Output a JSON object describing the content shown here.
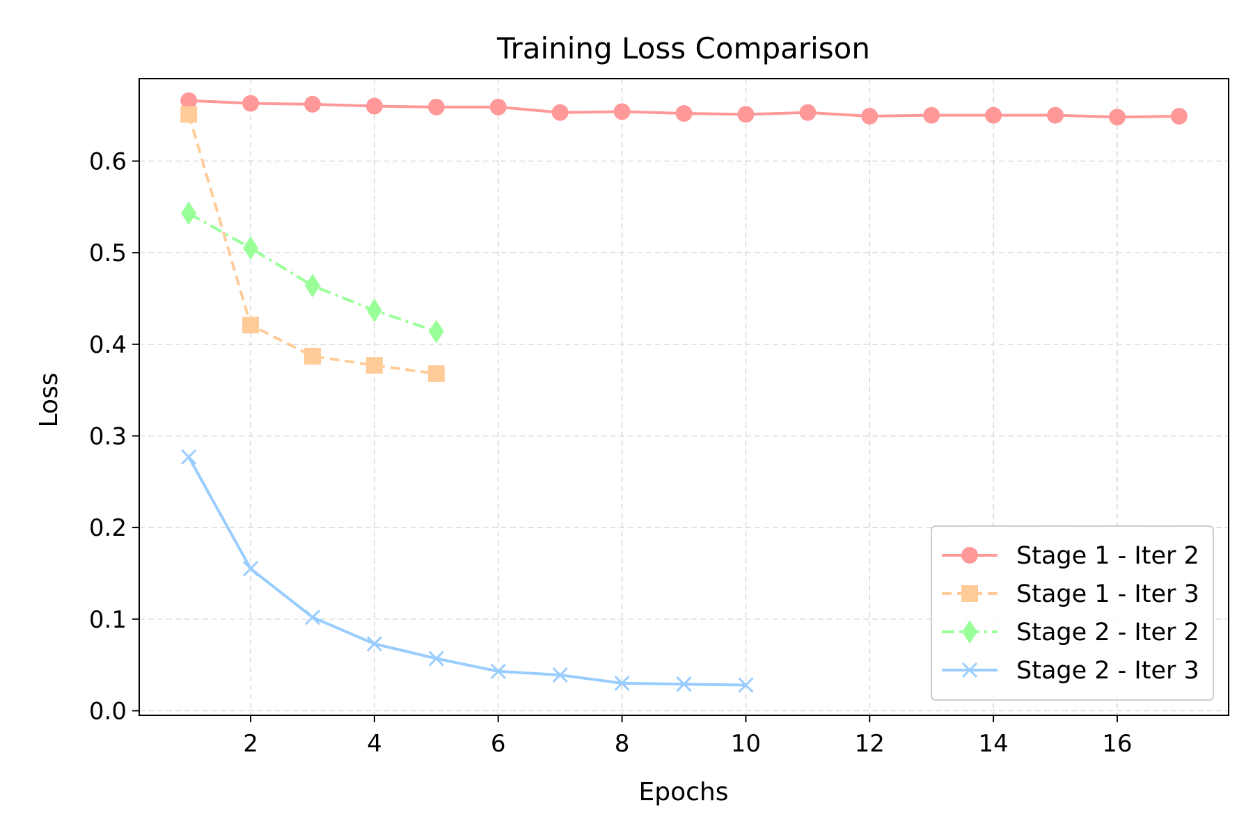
{
  "chart_data": {
    "type": "line",
    "title": "Training Loss Comparison",
    "xlabel": "Epochs",
    "ylabel": "Loss",
    "xlim": [
      0.2,
      17.8
    ],
    "ylim": [
      -0.005,
      0.69
    ],
    "xticks": [
      2,
      4,
      6,
      8,
      10,
      12,
      14,
      16
    ],
    "yticks": [
      0.0,
      0.1,
      0.2,
      0.3,
      0.4,
      0.5,
      0.6
    ],
    "grid": true,
    "legend_position": "lower-right",
    "series": [
      {
        "name": "Stage 1 - Iter 2",
        "color": "#ff9999",
        "marker": "circle",
        "line_style": "solid",
        "x": [
          1,
          2,
          3,
          4,
          5,
          6,
          7,
          8,
          9,
          10,
          11,
          12,
          13,
          14,
          15,
          16,
          17
        ],
        "y": [
          0.666,
          0.663,
          0.662,
          0.66,
          0.659,
          0.659,
          0.653,
          0.654,
          0.652,
          0.651,
          0.653,
          0.649,
          0.65,
          0.65,
          0.65,
          0.648,
          0.649
        ]
      },
      {
        "name": "Stage 1 - Iter 3",
        "color": "#ffcc99",
        "marker": "square",
        "line_style": "dashed",
        "x": [
          1,
          2,
          3,
          4,
          5
        ],
        "y": [
          0.651,
          0.421,
          0.387,
          0.377,
          0.368
        ]
      },
      {
        "name": "Stage 2 - Iter 2",
        "color": "#99ff99",
        "marker": "diamond",
        "line_style": "dashdot",
        "x": [
          1,
          2,
          3,
          4,
          5
        ],
        "y": [
          0.543,
          0.505,
          0.464,
          0.437,
          0.414
        ]
      },
      {
        "name": "Stage 2 - Iter 3",
        "color": "#99ccff",
        "marker": "x",
        "line_style": "solid",
        "x": [
          1,
          2,
          3,
          4,
          5,
          6,
          7,
          8,
          9,
          10
        ],
        "y": [
          0.277,
          0.155,
          0.102,
          0.073,
          0.057,
          0.043,
          0.039,
          0.03,
          0.029,
          0.028
        ]
      }
    ]
  }
}
